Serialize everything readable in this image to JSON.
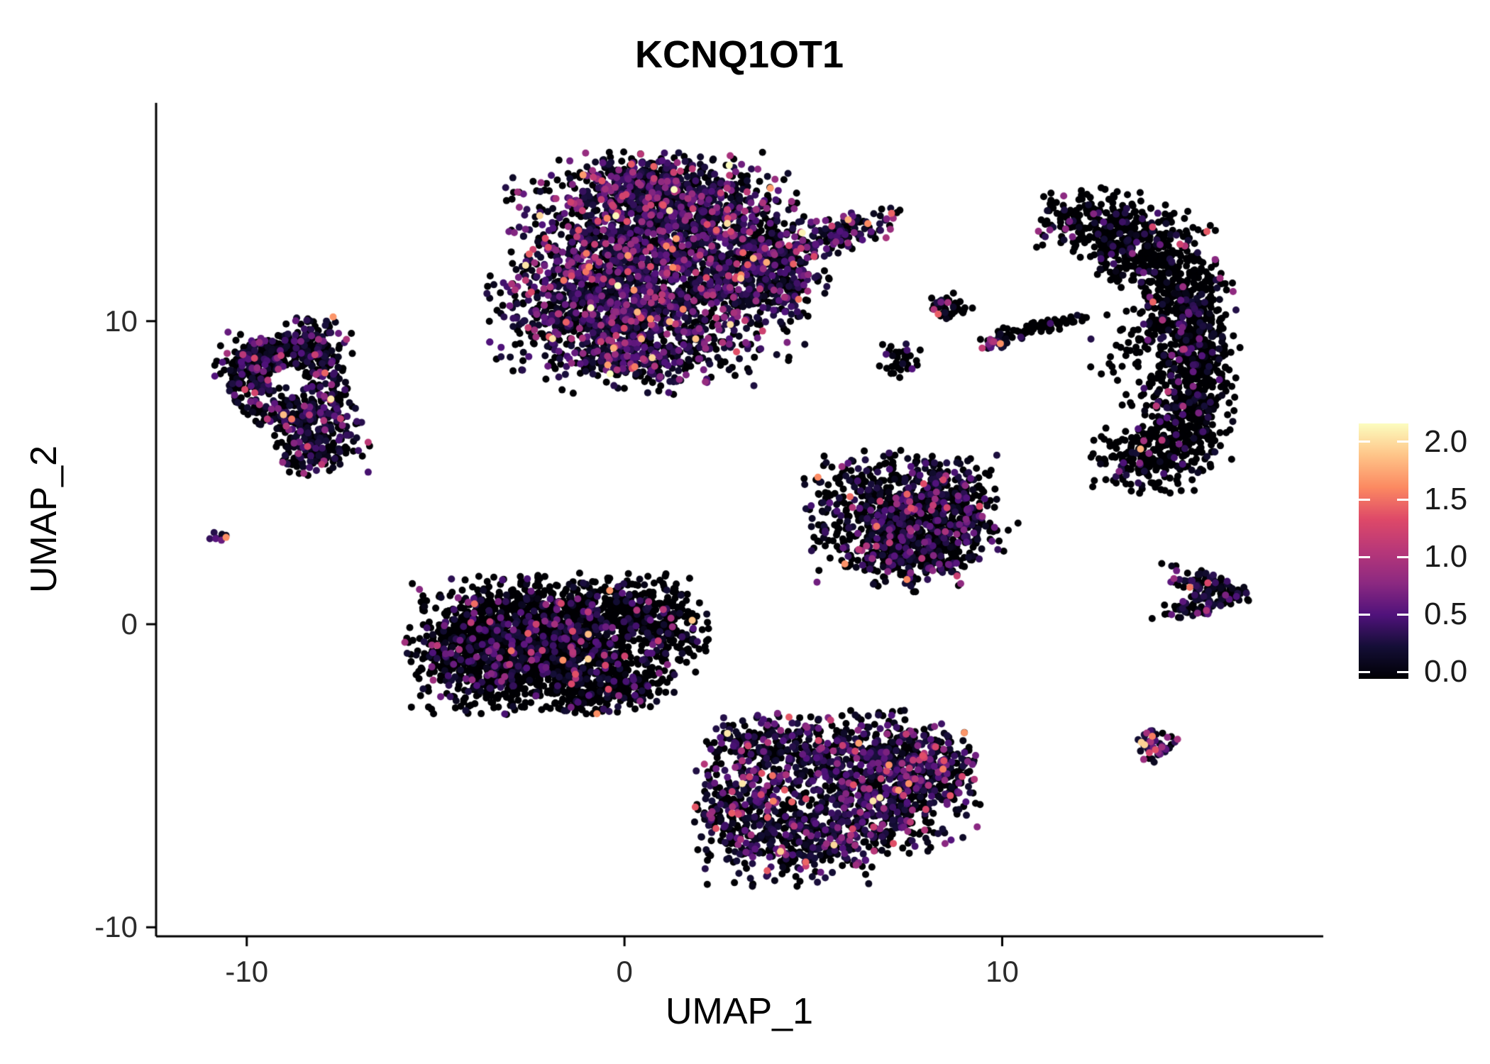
{
  "chart_data": {
    "type": "scatter",
    "title": "KCNQ1OT1",
    "xlabel": "UMAP_1",
    "ylabel": "UMAP_2",
    "x_axis": {
      "range": [
        -12.4,
        18.5
      ],
      "ticks": [
        -10,
        0,
        10
      ],
      "tick_labels": [
        "-10",
        "0",
        "10"
      ]
    },
    "y_axis": {
      "range": [
        -10.3,
        17.2
      ],
      "ticks": [
        -10,
        0,
        10
      ],
      "tick_labels": [
        "-10",
        "0",
        "10"
      ]
    },
    "color_scale": {
      "name": "magma",
      "stops": [
        "#000004",
        "#140E36",
        "#50127B",
        "#8C2981",
        "#B73779",
        "#DE4968",
        "#FC8961",
        "#FEC488",
        "#FCFDBF"
      ],
      "domain": [
        0,
        2.1
      ],
      "legend_ticks": [
        2.0,
        1.5,
        1.0,
        0.5,
        0.0
      ],
      "legend_tick_labels": [
        "2.0",
        "1.5",
        "1.0",
        "0.5",
        "0.0"
      ]
    },
    "marker": {
      "radius_px": 5
    },
    "clusters": [
      {
        "name": "top-center-large",
        "p0": 0.4,
        "mean": 0.62,
        "vmax": 2.15,
        "blobs": [
          {
            "x": 0.1,
            "y": 12.7,
            "sx": 1.55,
            "sy": 1.25,
            "n": 900
          },
          {
            "x": 1.6,
            "y": 13.9,
            "sx": 1.35,
            "sy": 0.8,
            "n": 520
          },
          {
            "x": 0.6,
            "y": 14.6,
            "sx": 0.8,
            "sy": 0.45,
            "n": 150
          },
          {
            "x": -0.8,
            "y": 10.4,
            "sx": 1.3,
            "sy": 1.1,
            "n": 650
          },
          {
            "x": 1.7,
            "y": 10.7,
            "sx": 1.45,
            "sy": 0.95,
            "n": 560
          },
          {
            "x": 0.6,
            "y": 8.9,
            "sx": 1.3,
            "sy": 0.6,
            "n": 300
          },
          {
            "x": 3.3,
            "y": 12.4,
            "sx": 0.85,
            "sy": 0.85,
            "n": 280
          },
          {
            "x": 3.9,
            "y": 11.5,
            "sx": 0.75,
            "sy": 0.7,
            "n": 180
          },
          {
            "x": 5.7,
            "y": 12.9,
            "sx": 0.8,
            "sy": 0.28,
            "rot": 20,
            "n": 140
          }
        ]
      },
      {
        "name": "left",
        "p0": 0.55,
        "mean": 0.55,
        "vmax": 2.0,
        "blobs": [
          {
            "type": "ring",
            "x": -8.9,
            "y": 8.0,
            "r0": 0.45,
            "r1": 1.6,
            "n": 500
          },
          {
            "x": -7.9,
            "y": 6.2,
            "sx": 0.55,
            "sy": 0.6,
            "n": 150
          },
          {
            "x": -9.9,
            "y": 8.6,
            "sx": 0.5,
            "sy": 0.5,
            "n": 90
          },
          {
            "x": -8.2,
            "y": 9.5,
            "sx": 0.5,
            "sy": 0.35,
            "n": 70
          },
          {
            "x": -8.4,
            "y": 5.7,
            "sx": 0.4,
            "sy": 0.4,
            "n": 60
          }
        ]
      },
      {
        "name": "tiny-left-dot",
        "p0": 0.15,
        "mean": 0.85,
        "vmax": 1.6,
        "blobs": [
          {
            "x": -10.75,
            "y": 2.85,
            "sx": 0.12,
            "sy": 0.11,
            "n": 9
          }
        ]
      },
      {
        "name": "bottom-left-large",
        "p0": 0.8,
        "mean": 0.55,
        "vmax": 1.9,
        "blobs": [
          {
            "x": -3.4,
            "y": -0.7,
            "sx": 1.1,
            "sy": 1.05,
            "n": 1100
          },
          {
            "x": -1.6,
            "y": -0.4,
            "sx": 1.05,
            "sy": 0.9,
            "n": 780
          },
          {
            "x": 0.2,
            "y": 0.5,
            "sx": 0.95,
            "sy": 0.55,
            "n": 270
          },
          {
            "x": -0.6,
            "y": -1.9,
            "sx": 0.9,
            "sy": 0.55,
            "n": 340
          },
          {
            "x": 1.2,
            "y": -0.5,
            "sx": 0.6,
            "sy": 0.5,
            "n": 130
          }
        ]
      },
      {
        "name": "mid-right-triangle",
        "p0": 0.62,
        "mean": 0.55,
        "vmax": 2.0,
        "blobs": [
          {
            "x": 7.6,
            "y": 4.2,
            "sx": 1.3,
            "sy": 0.7,
            "n": 470
          },
          {
            "x": 7.0,
            "y": 2.9,
            "sx": 1.0,
            "sy": 0.75,
            "n": 330
          },
          {
            "x": 8.6,
            "y": 3.1,
            "sx": 0.8,
            "sy": 0.6,
            "n": 230
          },
          {
            "x": 7.8,
            "y": 1.9,
            "sx": 0.55,
            "sy": 0.4,
            "n": 100
          }
        ]
      },
      {
        "name": "bottom-center",
        "p0": 0.48,
        "mean": 0.6,
        "vmax": 2.0,
        "blobs": [
          {
            "x": 6.1,
            "y": -4.3,
            "sx": 1.5,
            "sy": 0.7,
            "n": 470
          },
          {
            "x": 6.9,
            "y": -5.7,
            "sx": 1.15,
            "sy": 0.85,
            "n": 420
          },
          {
            "x": 4.9,
            "y": -7.0,
            "sx": 1.3,
            "sy": 0.75,
            "n": 420
          },
          {
            "x": 3.1,
            "y": -6.0,
            "sx": 0.65,
            "sy": 0.95,
            "n": 230
          },
          {
            "x": 3.5,
            "y": -3.9,
            "sx": 0.65,
            "sy": 0.45,
            "n": 130
          },
          {
            "x": 8.0,
            "y": -4.8,
            "sx": 0.7,
            "sy": 0.65,
            "n": 190
          }
        ]
      },
      {
        "name": "right-crescent",
        "p0": 0.85,
        "mean": 0.5,
        "vmax": 1.8,
        "blobs": [
          {
            "x": 12.7,
            "y": 13.2,
            "sx": 0.85,
            "sy": 0.55,
            "n": 230
          },
          {
            "x": 13.9,
            "y": 12.3,
            "sx": 0.8,
            "sy": 0.65,
            "n": 270
          },
          {
            "x": 14.8,
            "y": 10.7,
            "sx": 0.6,
            "sy": 0.85,
            "n": 270
          },
          {
            "x": 15.1,
            "y": 8.8,
            "sx": 0.55,
            "sy": 0.9,
            "n": 270
          },
          {
            "x": 14.9,
            "y": 6.9,
            "sx": 0.6,
            "sy": 0.8,
            "n": 260
          },
          {
            "x": 13.9,
            "y": 5.5,
            "sx": 0.8,
            "sy": 0.55,
            "n": 230
          },
          {
            "x": 13.9,
            "y": 9.5,
            "sx": 0.8,
            "sy": 1.2,
            "n": 110
          }
        ]
      },
      {
        "name": "small-pair-upper",
        "p0": 0.82,
        "mean": 0.6,
        "vmax": 1.4,
        "blobs": [
          {
            "x": 8.6,
            "y": 10.5,
            "sx": 0.32,
            "sy": 0.22,
            "n": 45
          },
          {
            "x": 7.3,
            "y": 8.7,
            "sx": 0.28,
            "sy": 0.3,
            "n": 35
          }
        ]
      },
      {
        "name": "streak-colored-end",
        "p0": 0.2,
        "mean": 0.85,
        "vmax": 1.6,
        "blobs": [
          {
            "x": 9.9,
            "y": 9.3,
            "sx": 0.3,
            "sy": 0.11,
            "rot": 20,
            "n": 30
          }
        ]
      },
      {
        "name": "streak-dark",
        "p0": 0.92,
        "mean": 0.4,
        "vmax": 1.2,
        "blobs": [
          {
            "x": 11.0,
            "y": 9.8,
            "sx": 0.75,
            "sy": 0.11,
            "rot": 14,
            "n": 70
          }
        ]
      },
      {
        "name": "right-small-wedge",
        "p0": 0.5,
        "mean": 0.55,
        "vmax": 1.6,
        "blobs": [
          {
            "x": 15.4,
            "y": 1.25,
            "sx": 0.65,
            "sy": 0.22,
            "rot": -22,
            "n": 85
          },
          {
            "x": 15.2,
            "y": 0.65,
            "sx": 0.6,
            "sy": 0.2,
            "rot": 18,
            "n": 65
          }
        ]
      },
      {
        "name": "bottom-right-dot",
        "p0": 0.1,
        "mean": 0.85,
        "vmax": 1.9,
        "blobs": [
          {
            "x": 14.1,
            "y": -4.0,
            "sx": 0.27,
            "sy": 0.26,
            "n": 50
          }
        ]
      }
    ]
  }
}
